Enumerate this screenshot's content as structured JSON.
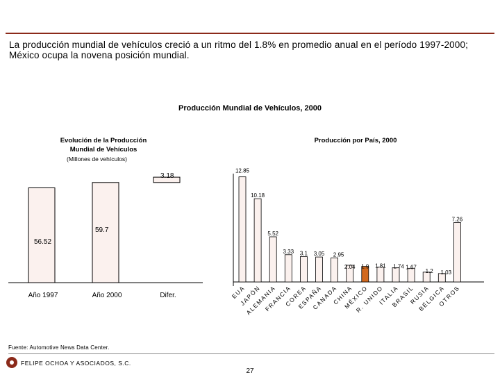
{
  "intro_text": "La producción mundial de vehículos creció a un ritmo del 1.8% en promedio anual en el período 1997-2000; México ocupa la novena posición mundial.",
  "main_title": "Producción Mundial de Vehículos, 2000",
  "footnote": "Fuente: Automotive News Data Center.",
  "company": "FELIPE OCHOA Y ASOCIADOS, S.C.",
  "page_number": "27",
  "colors": {
    "accent": "#8b2a1a",
    "bar_fill": "#fbf1ee",
    "highlight": "#d2691e"
  },
  "chart_data": [
    {
      "type": "waterfall",
      "title_line1": "Evolución de la Producción",
      "title_line2": "Mundial de Vehículos",
      "units": "(Millones de vehículos)",
      "categories": [
        "Año 1997",
        "Año 2000",
        "Difer."
      ],
      "values": [
        56.52,
        59.7,
        3.18
      ],
      "labels": [
        "56.52",
        "59.7",
        "3.18"
      ],
      "ylim": [
        0,
        65
      ]
    },
    {
      "type": "bar",
      "title": "Producción por País, 2000",
      "categories": [
        "EUA",
        "JAPÓN",
        "ALEMANIA",
        "FRANCIA",
        "COREA",
        "ESPAÑA",
        "CANADA",
        "CHINA",
        "MÉXICO",
        "R. UNIDO",
        "ITALIA",
        "BRASIL",
        "RUSIA",
        "BÉLGICA",
        "OTROS"
      ],
      "values": [
        12.85,
        10.18,
        5.52,
        3.33,
        3.1,
        3.05,
        2.95,
        2.04,
        1.9,
        1.81,
        1.74,
        1.67,
        1.2,
        1.03,
        7.26
      ],
      "labels": [
        "12.85",
        "10.18",
        "5.52",
        "3.33",
        "3.1",
        "3.05",
        "2.95",
        "2.04",
        "1.9",
        "1.81",
        "1.74",
        "1.67",
        "1.2",
        "1.03",
        "7.26"
      ],
      "highlight": "MÉXICO",
      "ylim": [
        0,
        13.5
      ]
    }
  ]
}
